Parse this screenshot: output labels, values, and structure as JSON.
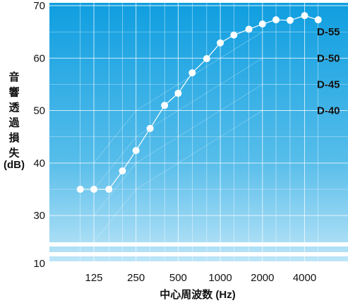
{
  "chart_data": {
    "type": "line",
    "xlabel": "中心周波数 (Hz)",
    "ylabel": "音響透過損失 (dB)",
    "ylabel_chars": [
      "音",
      "響",
      "透",
      "過",
      "損",
      "失",
      "(dB)"
    ],
    "x_ticks": [
      "125",
      "250",
      "500",
      "1000",
      "2000",
      "4000"
    ],
    "y_ticks": [
      "70",
      "60",
      "50",
      "40",
      "30",
      "10"
    ],
    "axis_break": "between 10 and 30 dB",
    "grid": true,
    "x_scale": "log (1/3-octave bands)",
    "series": [
      {
        "name": "",
        "x": [
          100,
          125,
          160,
          200,
          250,
          315,
          400,
          500,
          630,
          800,
          1000,
          1250,
          1600,
          2000,
          2500,
          3150,
          4000,
          5000
        ],
        "y": [
          35,
          35,
          35,
          38.5,
          42.4,
          46.6,
          51,
          53.3,
          57.2,
          59.9,
          62.9,
          64.4,
          65.5,
          66.5,
          67.3,
          67.2,
          68.1,
          67.3
        ]
      }
    ],
    "reference_curves": [
      {
        "name": "D-55",
        "x": [
          125,
          250,
          500,
          1000,
          2000,
          4000
        ],
        "y": [
          40,
          50,
          55,
          60,
          65,
          65
        ]
      },
      {
        "name": "D-50",
        "x": [
          125,
          250,
          500,
          1000,
          2000,
          4000
        ],
        "y": [
          35,
          45,
          50,
          55,
          60,
          60
        ]
      },
      {
        "name": "D-45",
        "x": [
          125,
          250,
          500,
          1000,
          2000,
          4000
        ],
        "y": [
          30,
          40,
          45,
          50,
          55,
          55
        ]
      },
      {
        "name": "D-40",
        "x": [
          125,
          250,
          500,
          1000,
          2000,
          4000
        ],
        "y": [
          25,
          35,
          40,
          45,
          50,
          50
        ]
      }
    ],
    "colors": {
      "plot_top": "#0f9ee0",
      "plot_bottom": "#bfe6f8",
      "grid": "#ffffff",
      "marker": "#ffffff",
      "text": "#111111"
    }
  }
}
